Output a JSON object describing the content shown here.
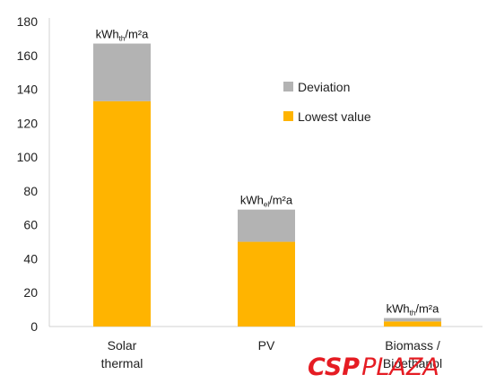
{
  "chart_data": {
    "type": "bar",
    "stacked": true,
    "categories": [
      [
        "Solar",
        "thermal"
      ],
      [
        "PV"
      ],
      [
        "Biomass /",
        "Bioethanol"
      ]
    ],
    "series": [
      {
        "name": "Lowest value",
        "color": "#ffb400",
        "values": [
          133,
          50,
          3
        ]
      },
      {
        "name": "Deviation",
        "color": "#b3b3b3",
        "values": [
          34,
          19,
          2
        ]
      }
    ],
    "bar_annotations": [
      {
        "main": "kWh",
        "sub": "th",
        "suffix": "/m²a"
      },
      {
        "main": "kWh",
        "sub": "el",
        "suffix": "/m²a"
      },
      {
        "main": "kWh",
        "sub": "th",
        "suffix": "/m²a"
      }
    ],
    "ylim": [
      0,
      180
    ],
    "yticks": [
      0,
      20,
      40,
      60,
      80,
      100,
      120,
      140,
      160,
      180
    ],
    "legend": {
      "placement": "top-right",
      "order": [
        "Deviation",
        "Lowest value"
      ]
    },
    "grid": false
  },
  "watermark": {
    "part1": "CSP",
    "part2": "PLAZA",
    "color": "#e51c23"
  }
}
